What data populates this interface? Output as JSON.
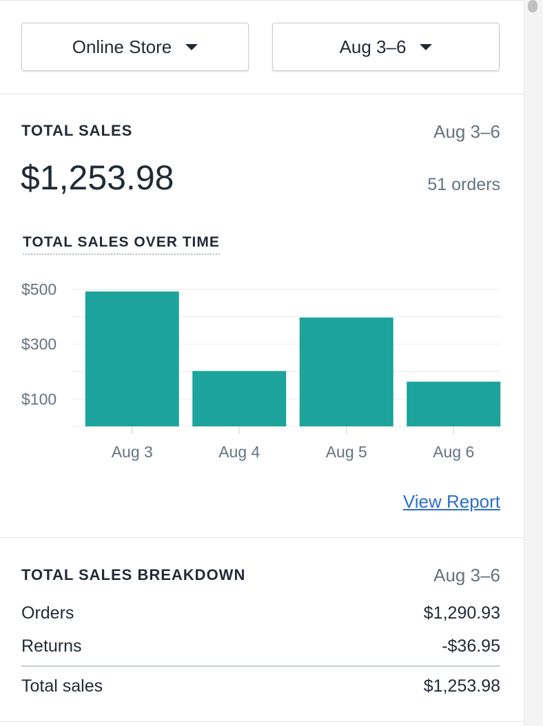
{
  "filters": {
    "store": "Online Store",
    "date": "Aug 3–6"
  },
  "summary": {
    "title": "TOTAL SALES",
    "date": "Aug 3–6",
    "amount": "$1,253.98",
    "orders": "51 orders"
  },
  "chart_data": {
    "type": "bar",
    "title": "TOTAL SALES OVER TIME",
    "categories": [
      "Aug 3",
      "Aug 4",
      "Aug 5",
      "Aug 6"
    ],
    "values": [
      492,
      202,
      397,
      163
    ],
    "color": "#1ba39c",
    "ylim": [
      0,
      500
    ],
    "yticks": [
      {
        "value": 100,
        "label": "$100"
      },
      {
        "value": 300,
        "label": "$300"
      },
      {
        "value": 500,
        "label": "$500"
      }
    ],
    "minor_yticks": [
      0,
      200,
      400
    ],
    "grid": true
  },
  "link": "View Report",
  "breakdown": {
    "title": "TOTAL SALES BREAKDOWN",
    "date": "Aug 3–6",
    "rows": [
      [
        "Orders",
        "$1,290.93"
      ],
      [
        "Returns",
        "-$36.95"
      ]
    ],
    "total": [
      "Total sales",
      "$1,253.98"
    ]
  }
}
